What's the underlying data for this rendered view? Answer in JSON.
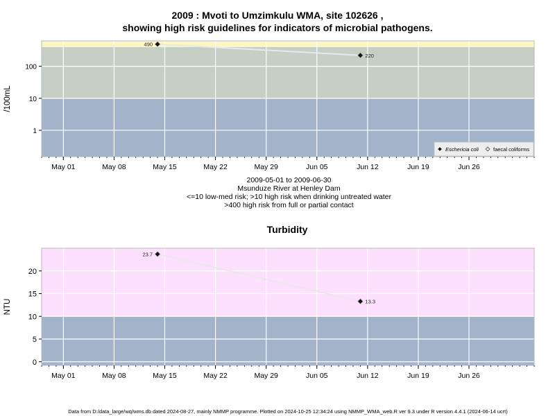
{
  "chart_data": [
    {
      "type": "line",
      "title_line1": "2009 : Mvoti to Umzimkulu WMA, site 102626 ,",
      "title_line2": "showing high risk guidelines for indicators of microbial pathogens.",
      "ylabel": "/100mL",
      "yscale": "log",
      "ylim": [
        0.15,
        620
      ],
      "yticks": [
        {
          "v": 1,
          "label": "1"
        },
        {
          "v": 10,
          "label": "10"
        },
        {
          "v": 100,
          "label": "100"
        }
      ],
      "xlim": [
        "2009-04-28",
        "2009-07-05"
      ],
      "xticks": [
        "May 01",
        "May 08",
        "May 15",
        "May 22",
        "May 29",
        "Jun 05",
        "Jun 12",
        "Jun 19",
        "Jun 26"
      ],
      "x_tick_dates": [
        "2009-05-01",
        "2009-05-08",
        "2009-05-15",
        "2009-05-22",
        "2009-05-29",
        "2009-06-05",
        "2009-06-12",
        "2009-06-19",
        "2009-06-26"
      ],
      "bands": [
        {
          "from": 0.15,
          "to": 10,
          "color": "#a3b3c9"
        },
        {
          "from": 10,
          "to": 400,
          "color": "#c5cfc5"
        },
        {
          "from": 400,
          "to": 620,
          "color": "#fbf6c6"
        }
      ],
      "series": [
        {
          "name": "Eschericia coli",
          "marker": "filled-diamond",
          "x": [
            "2009-05-14",
            "2009-06-11"
          ],
          "y": [
            490,
            220
          ],
          "labels": [
            "490",
            "220"
          ]
        },
        {
          "name": "faecal coliforms",
          "marker": "open-diamond",
          "x": [],
          "y": [],
          "labels": []
        }
      ],
      "legend_position": "bottom-right",
      "grid": true,
      "below_axis_text": [
        "2009-05-01 to 2009-06-30",
        "Msunduze River at Henley Dam",
        "<=10 low-med risk; >10 high risk when drinking untreated water",
        ">400 high risk from full or partial contact"
      ]
    },
    {
      "type": "line",
      "title": "Turbidity",
      "ylabel": "NTU",
      "yscale": "linear",
      "ylim": [
        -0.8,
        25
      ],
      "yticks": [
        {
          "v": 0,
          "label": "0"
        },
        {
          "v": 5,
          "label": "5"
        },
        {
          "v": 10,
          "label": "10"
        },
        {
          "v": 15,
          "label": "15"
        },
        {
          "v": 20,
          "label": "20"
        }
      ],
      "xlim": [
        "2009-04-28",
        "2009-07-05"
      ],
      "xticks": [
        "May 01",
        "May 08",
        "May 15",
        "May 22",
        "May 29",
        "Jun 05",
        "Jun 12",
        "Jun 19",
        "Jun 26"
      ],
      "x_tick_dates": [
        "2009-05-01",
        "2009-05-08",
        "2009-05-15",
        "2009-05-22",
        "2009-05-29",
        "2009-06-05",
        "2009-06-12",
        "2009-06-19",
        "2009-06-26"
      ],
      "bands": [
        {
          "from": -0.8,
          "to": 10,
          "color": "#a3b3c9"
        },
        {
          "from": 10,
          "to": 25,
          "color": "#fde0fd"
        }
      ],
      "series": [
        {
          "name": "Turbidity",
          "marker": "filled-diamond",
          "x": [
            "2009-05-14",
            "2009-06-11"
          ],
          "y": [
            23.7,
            13.3
          ],
          "labels": [
            "23.7",
            "13.3"
          ]
        }
      ],
      "grid": true
    }
  ],
  "footer": "Data from D:/data_large/wq/wms.db dated 2024-08-27, mainly NMMP programme. Plotted on 2024-10-25 12:34:24 using NMMP_WMA_web.R ver 9.3 under R version 4.4.1 (2024-06-14 ucrt)"
}
